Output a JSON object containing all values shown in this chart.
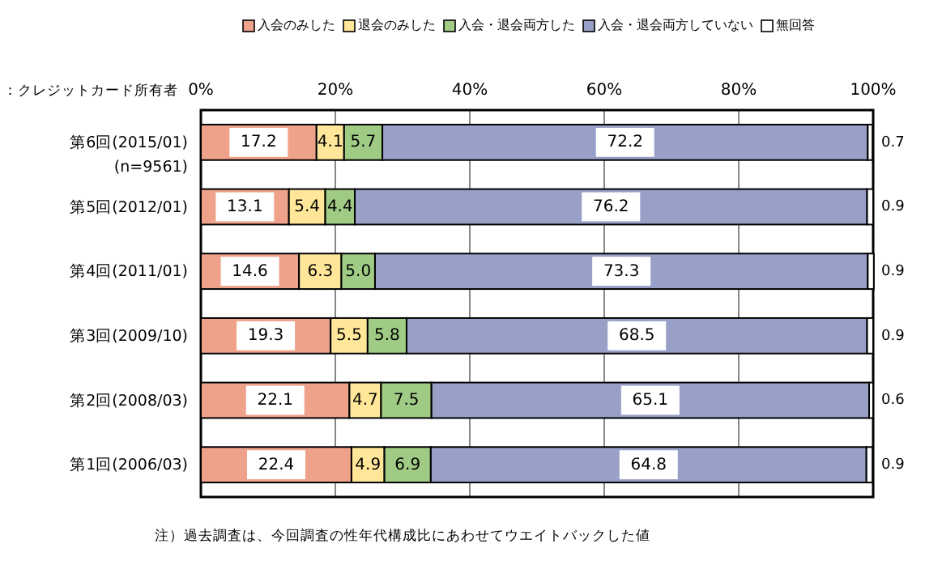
{
  "chart_data": {
    "type": "bar",
    "orientation": "horizontal",
    "stacked": true,
    "subtitle": "：クレジットカード所有者",
    "categories": [
      "第6回(2015/01)\n(n=9561)",
      "第5回(2012/01)",
      "第4回(2011/01)",
      "第3回(2009/10)",
      "第2回(2008/03)",
      "第1回(2006/03)"
    ],
    "series": [
      {
        "name": "入会のみした",
        "color": "#eea28a",
        "values": [
          17.2,
          13.1,
          14.6,
          19.3,
          22.1,
          22.4
        ],
        "value_labels": [
          "17.2",
          "13.1",
          "14.6",
          "19.3",
          "22.1",
          "22.4"
        ]
      },
      {
        "name": "退会のみした",
        "color": "#ffe699",
        "values": [
          4.1,
          5.4,
          6.3,
          5.5,
          4.7,
          4.9
        ],
        "value_labels": [
          "4.1",
          "5.4",
          "6.3",
          "5.5",
          "4.7",
          "4.9"
        ]
      },
      {
        "name": "入会・退会両方した",
        "color": "#9fcb85",
        "values": [
          5.7,
          4.4,
          5.0,
          5.8,
          7.5,
          6.9
        ],
        "value_labels": [
          "5.7",
          "4.4",
          "5.0",
          "5.8",
          "7.5",
          "6.9"
        ]
      },
      {
        "name": "入会・退会両方していない",
        "color": "#99a0c8",
        "values": [
          72.2,
          76.2,
          73.3,
          68.5,
          65.1,
          64.8
        ],
        "value_labels": [
          "72.2",
          "76.2",
          "73.3",
          "68.5",
          "65.1",
          "64.8"
        ]
      },
      {
        "name": "無回答",
        "color": "#ffffff",
        "values": [
          0.7,
          0.9,
          0.9,
          0.9,
          0.6,
          0.9
        ],
        "value_labels": [
          "0.7",
          "0.9",
          "0.9",
          "0.9",
          "0.6",
          "0.9"
        ]
      }
    ],
    "xlim": [
      0,
      100
    ],
    "xticks": [
      {
        "value": 0,
        "label": "0%"
      },
      {
        "value": 20,
        "label": "20%"
      },
      {
        "value": 40,
        "label": "40%"
      },
      {
        "value": 60,
        "label": "60%"
      },
      {
        "value": 80,
        "label": "80%"
      },
      {
        "value": 100,
        "label": "100%"
      }
    ],
    "grid": "x",
    "legend": "top",
    "annotations": [
      "注）過去調査は、今回調査の性年代構成比にあわせてウエイトバックした値"
    ]
  }
}
